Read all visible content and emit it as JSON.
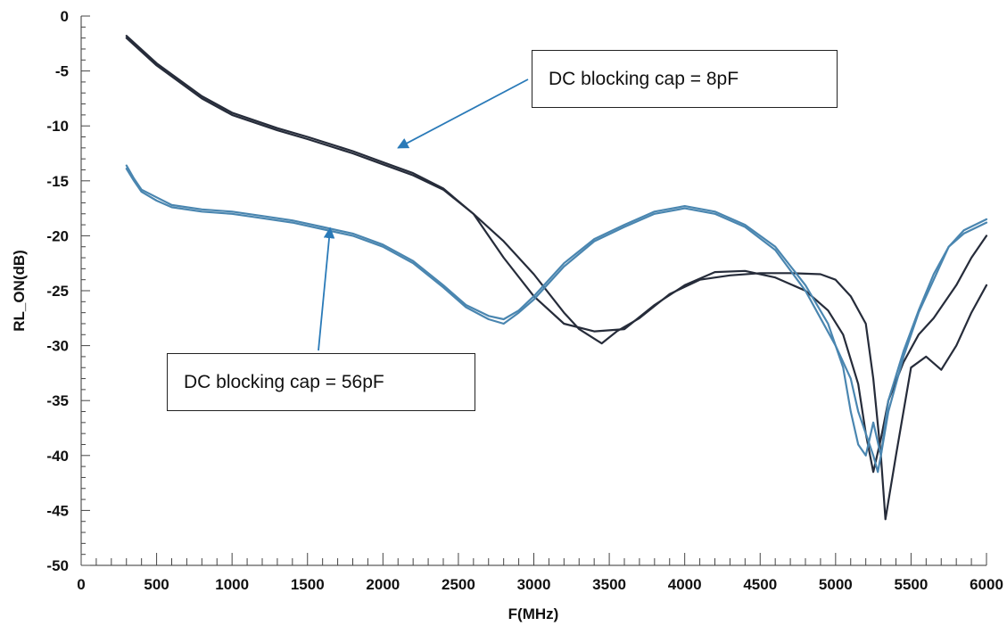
{
  "chart_data": {
    "type": "line",
    "title": "",
    "xlabel": "F(MHz)",
    "ylabel": "RL_ON(dB)",
    "xlim": [
      0,
      6000
    ],
    "ylim": [
      -50,
      0
    ],
    "x_ticks": [
      "0",
      "500",
      "1000",
      "1500",
      "2000",
      "2500",
      "3000",
      "3500",
      "4000",
      "4500",
      "5000",
      "5500",
      "6000"
    ],
    "y_ticks": [
      "0",
      "-5",
      "-10",
      "-15",
      "-20",
      "-25",
      "-30",
      "-35",
      "-40",
      "-45",
      "-50"
    ],
    "grid": false,
    "colors": {
      "cap8": "#262c3a",
      "cap56": "#4a86b0",
      "arrow": "#2a7ab8"
    },
    "series": [
      {
        "group": "cap8",
        "x": [
          300,
          500,
          800,
          1000,
          1300,
          1500,
          1800,
          2000,
          2200,
          2400,
          2600,
          2800,
          3000,
          3200,
          3400,
          3600,
          3800,
          4000,
          4200,
          4400,
          4600,
          4800,
          4950,
          5050,
          5150,
          5200,
          5250,
          5300,
          5350,
          5450,
          5550,
          5650,
          5800,
          5900,
          6000
        ],
        "y": [
          -2,
          -4.5,
          -7.5,
          -9,
          -10.4,
          -11.2,
          -12.5,
          -13.5,
          -14.5,
          -15.8,
          -18,
          -22,
          -25.5,
          -28,
          -28.7,
          -28.5,
          -26.3,
          -24.5,
          -23.3,
          -23.2,
          -23.8,
          -25,
          -26.8,
          -29,
          -33.5,
          -38,
          -41.5,
          -38.5,
          -35,
          -31.5,
          -29,
          -27.5,
          -24.5,
          -22,
          -20
        ]
      },
      {
        "group": "cap8",
        "x": [
          300,
          500,
          800,
          1000,
          1300,
          1500,
          1800,
          2000,
          2200,
          2400,
          2600,
          2800,
          3000,
          3200,
          3300,
          3450,
          3550,
          3700,
          3900,
          4100,
          4300,
          4500,
          4700,
          4900,
          5000,
          5100,
          5200,
          5250,
          5300,
          5330,
          5400,
          5500,
          5600,
          5700,
          5800,
          5900,
          6000
        ],
        "y": [
          -1.8,
          -4.3,
          -7.3,
          -8.8,
          -10.2,
          -11,
          -12.3,
          -13.3,
          -14.3,
          -15.7,
          -18,
          -20.5,
          -23.5,
          -27,
          -28.5,
          -29.8,
          -28.7,
          -27.5,
          -25.3,
          -24,
          -23.6,
          -23.4,
          -23.4,
          -23.5,
          -24,
          -25.5,
          -28,
          -33,
          -40,
          -45.8,
          -40,
          -32,
          -31,
          -32.2,
          -30,
          -27,
          -24.5
        ]
      },
      {
        "group": "cap56",
        "x": [
          300,
          350,
          400,
          500,
          600,
          800,
          1000,
          1200,
          1400,
          1600,
          1800,
          2000,
          2200,
          2400,
          2550,
          2700,
          2800,
          2900,
          3000,
          3200,
          3400,
          3600,
          3800,
          4000,
          4200,
          4400,
          4600,
          4800,
          4950,
          5050,
          5100,
          5150,
          5200,
          5250,
          5300,
          5350,
          5450,
          5550,
          5650,
          5750,
          5850,
          6000
        ],
        "y": [
          -13.6,
          -14.8,
          -15.8,
          -16.5,
          -17.2,
          -17.6,
          -17.8,
          -18.2,
          -18.6,
          -19.2,
          -19.8,
          -20.8,
          -22.3,
          -24.5,
          -26.3,
          -27.3,
          -27.6,
          -26.8,
          -25.5,
          -22.5,
          -20.3,
          -19,
          -17.8,
          -17.3,
          -17.8,
          -19,
          -21,
          -24.5,
          -28,
          -32,
          -36,
          -39,
          -40,
          -37,
          -40,
          -36,
          -31,
          -27,
          -24,
          -21,
          -19.5,
          -18.5
        ]
      },
      {
        "group": "cap56",
        "x": [
          300,
          350,
          400,
          500,
          600,
          800,
          1000,
          1200,
          1400,
          1600,
          1800,
          2000,
          2200,
          2400,
          2550,
          2700,
          2800,
          2900,
          3000,
          3200,
          3400,
          3600,
          3800,
          4000,
          4200,
          4400,
          4600,
          4800,
          4900,
          5000,
          5100,
          5150,
          5200,
          5250,
          5280,
          5300,
          5350,
          5450,
          5550,
          5650,
          5750,
          5850,
          6000
        ],
        "y": [
          -13.9,
          -15,
          -16,
          -16.8,
          -17.4,
          -17.8,
          -18,
          -18.4,
          -18.8,
          -19.4,
          -20,
          -21,
          -22.5,
          -24.7,
          -26.5,
          -27.6,
          -28,
          -27,
          -25.8,
          -22.8,
          -20.5,
          -19.2,
          -18,
          -17.5,
          -18,
          -19.2,
          -21.3,
          -25,
          -27.5,
          -30,
          -33,
          -36,
          -38,
          -40,
          -41.5,
          -40,
          -35,
          -30.5,
          -26.8,
          -23.5,
          -21,
          -19.8,
          -18.8
        ]
      }
    ],
    "annotations": [
      {
        "group": "cap8",
        "text": "DC blocking cap = 8pF",
        "arrow_tip": {
          "x": 2100,
          "y": -12
        }
      },
      {
        "group": "cap56",
        "text": "DC blocking cap = 56pF",
        "arrow_tip": {
          "x": 1650,
          "y": -19.3
        }
      }
    ]
  }
}
